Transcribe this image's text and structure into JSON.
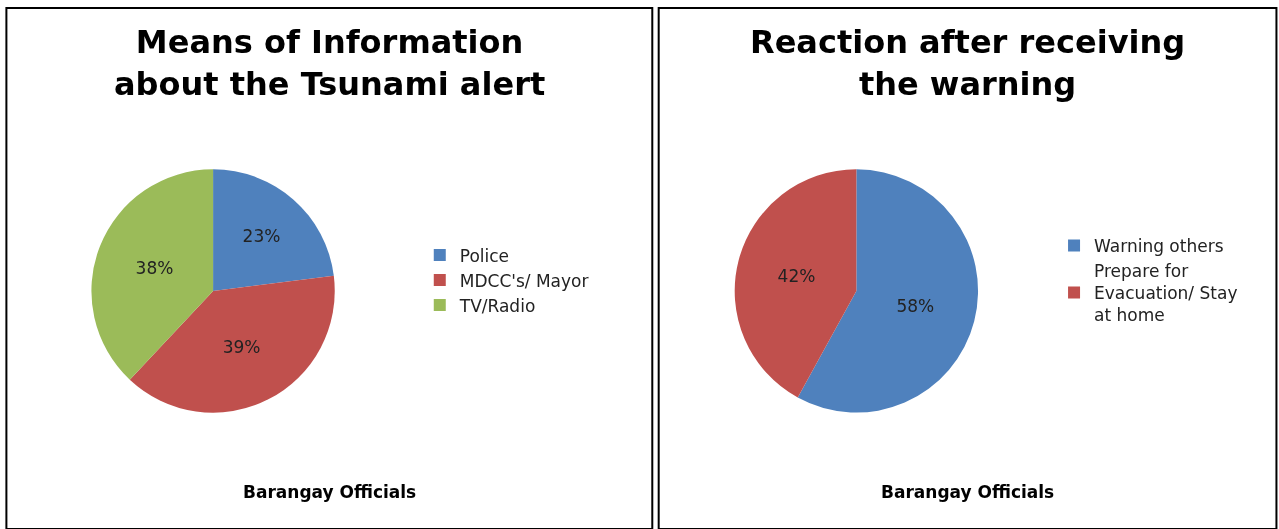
{
  "chart_data": [
    {
      "type": "pie",
      "title": "Means of Information\nabout the Tsunami alert",
      "categories": [
        "Police",
        "MDCC's/ Mayor",
        "TV/Radio"
      ],
      "values": [
        23,
        39,
        38
      ],
      "value_labels": [
        "23%",
        "39%",
        "38%"
      ],
      "colors": [
        "#4f81bd",
        "#c0504d",
        "#9bbb59"
      ],
      "legend": "right",
      "annotations": [
        "Barangay Officials"
      ]
    },
    {
      "type": "pie",
      "title": "Reaction after receiving\nthe warning",
      "categories": [
        "Warning others",
        "Prepare for\nEvacuation/ Stay\nat home"
      ],
      "values": [
        58,
        42
      ],
      "value_labels": [
        "58%",
        "42%"
      ],
      "colors": [
        "#4f81bd",
        "#c0504d"
      ],
      "legend": "right",
      "annotations": [
        "Barangay Officials"
      ]
    }
  ]
}
